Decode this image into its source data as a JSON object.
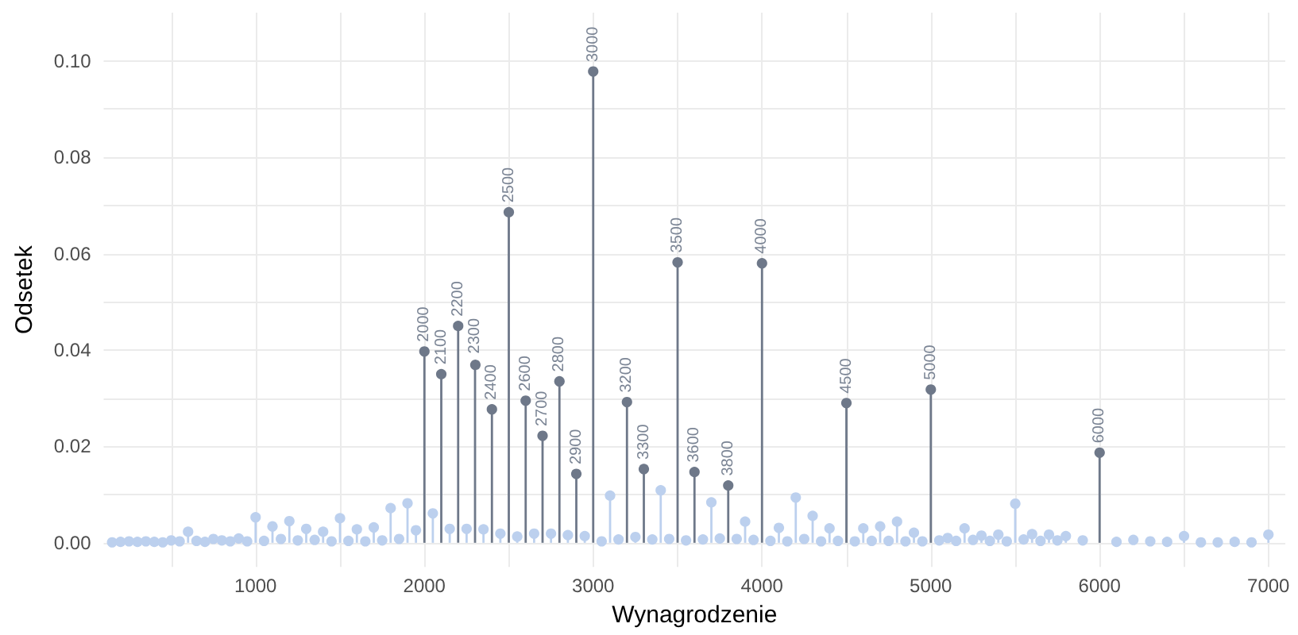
{
  "chart_data": {
    "type": "lollipop",
    "xlabel": "Wynagrodzenie",
    "ylabel": "Odsetek",
    "xlim": [
      100,
      7100
    ],
    "ylim": [
      -0.005,
      0.11
    ],
    "xticks": [
      {
        "value": 500,
        "label": null
      },
      1000,
      {
        "value": 1500,
        "label": null
      },
      2000,
      {
        "value": 2500,
        "label": null
      },
      3000,
      {
        "value": 3500,
        "label": null
      },
      4000,
      {
        "value": 4500,
        "label": null
      },
      5000,
      {
        "value": 5500,
        "label": null
      },
      6000,
      {
        "value": 6500,
        "label": null
      },
      7000
    ],
    "yticks": [
      {
        "value": 0,
        "label": "0.00"
      },
      {
        "value": 0.01,
        "label": null
      },
      {
        "value": 0.02,
        "label": "0.02"
      },
      {
        "value": 0.03,
        "label": null
      },
      {
        "value": 0.04,
        "label": "0.04"
      },
      {
        "value": 0.05,
        "label": null
      },
      {
        "value": 0.06,
        "label": "0.06"
      },
      {
        "value": 0.07,
        "label": null
      },
      {
        "value": 0.08,
        "label": "0.08"
      },
      {
        "value": 0.09,
        "label": null
      },
      {
        "value": 0.1,
        "label": "0.10"
      }
    ],
    "grid": true,
    "marker": "circle",
    "series": [
      {
        "color": "#bcd0ee",
        "x": [
          150,
          200,
          250,
          300,
          350,
          400,
          450,
          500,
          550,
          600,
          650,
          700,
          750,
          800,
          850,
          900,
          950,
          1000,
          1050,
          1100,
          1150,
          1200,
          1250,
          1300,
          1350,
          1400,
          1450,
          1500,
          1550,
          1600,
          1650,
          1700,
          1750,
          1800,
          1850,
          1900,
          1950,
          2050,
          2150,
          2250,
          2350,
          2450,
          2550,
          2650,
          2750,
          2850,
          2950,
          3050,
          3100,
          3150,
          3250,
          3350,
          3400,
          3450,
          3550,
          3650,
          3700,
          3750,
          3850,
          3900,
          3950,
          4050,
          4100,
          4150,
          4200,
          4250,
          4300,
          4350,
          4400,
          4450,
          4550,
          4600,
          4650,
          4700,
          4750,
          4800,
          4850,
          4900,
          4950,
          5050,
          5100,
          5150,
          5200,
          5250,
          5300,
          5350,
          5400,
          5450,
          5500,
          5550,
          5600,
          5650,
          5700,
          5750,
          5800,
          5900,
          6100,
          6200,
          6300,
          6400,
          6500,
          6600,
          6700,
          6800,
          6900,
          7000
        ],
        "values": [
          0.0001,
          0.0002,
          0.0003,
          0.0002,
          0.0003,
          0.0002,
          0.0001,
          0.0005,
          0.0003,
          0.0023,
          0.0004,
          0.0002,
          0.0008,
          0.0005,
          0.0003,
          0.0009,
          0.0003,
          0.0053,
          0.0004,
          0.0034,
          0.0008,
          0.0045,
          0.0005,
          0.0029,
          0.0006,
          0.0023,
          0.0003,
          0.0051,
          0.0004,
          0.0028,
          0.0003,
          0.0032,
          0.0005,
          0.0072,
          0.0008,
          0.0082,
          0.0026,
          0.0061,
          0.0029,
          0.0029,
          0.0028,
          0.0019,
          0.0013,
          0.0019,
          0.0019,
          0.0016,
          0.0014,
          0.0003,
          0.0098,
          0.0007,
          0.0012,
          0.0007,
          0.0109,
          0.0008,
          0.0005,
          0.0007,
          0.0084,
          0.0009,
          0.0008,
          0.0044,
          0.0006,
          0.0004,
          0.0031,
          0.0003,
          0.0094,
          0.0008,
          0.0056,
          0.0003,
          0.003,
          0.0004,
          0.0003,
          0.003,
          0.0004,
          0.0034,
          0.0004,
          0.0044,
          0.0003,
          0.0021,
          0.0003,
          0.0005,
          0.001,
          0.0004,
          0.003,
          0.0006,
          0.0015,
          0.0004,
          0.0017,
          0.0003,
          0.0083,
          0.0007,
          0.0018,
          0.0004,
          0.0017,
          0.0005,
          0.0014,
          0.0005,
          0.0002,
          0.0006,
          0.0003,
          0.0002,
          0.0014,
          0.0001,
          0.0001,
          0.0002,
          0.0001,
          0.0017
        ]
      },
      {
        "color": "#6e7889",
        "x": [
          2000,
          2100,
          2200,
          2300,
          2400,
          2500,
          2600,
          2700,
          2800,
          2900,
          3000,
          3200,
          3300,
          3500,
          3600,
          3800,
          4000,
          4500,
          5000,
          6000
        ],
        "values": [
          0.0397,
          0.035,
          0.045,
          0.0373,
          0.0277,
          0.0686,
          0.0295,
          0.0222,
          0.0335,
          0.0143,
          0.0978,
          0.0292,
          0.0153,
          0.0582,
          0.0147,
          0.0119,
          0.058,
          0.029,
          0.0318,
          0.0187
        ]
      }
    ],
    "annotations": [
      {
        "text": "2000",
        "x": 2000,
        "y": 0.0397
      },
      {
        "text": "2100",
        "x": 2100,
        "y": 0.035
      },
      {
        "text": "2200",
        "x": 2200,
        "y": 0.045
      },
      {
        "text": "2300",
        "x": 2300,
        "y": 0.0373
      },
      {
        "text": "2400",
        "x": 2400,
        "y": 0.0277
      },
      {
        "text": "2500",
        "x": 2500,
        "y": 0.0686
      },
      {
        "text": "2600",
        "x": 2600,
        "y": 0.0295
      },
      {
        "text": "2700",
        "x": 2700,
        "y": 0.0222
      },
      {
        "text": "2800",
        "x": 2800,
        "y": 0.0335
      },
      {
        "text": "2900",
        "x": 2900,
        "y": 0.0143
      },
      {
        "text": "3000",
        "x": 3000,
        "y": 0.0978
      },
      {
        "text": "3200",
        "x": 3200,
        "y": 0.0292
      },
      {
        "text": "3300",
        "x": 3300,
        "y": 0.0153
      },
      {
        "text": "3500",
        "x": 3500,
        "y": 0.0582
      },
      {
        "text": "3600",
        "x": 3600,
        "y": 0.0147
      },
      {
        "text": "3800",
        "x": 3800,
        "y": 0.0119
      },
      {
        "text": "4000",
        "x": 4000,
        "y": 0.058
      },
      {
        "text": "4500",
        "x": 4500,
        "y": 0.029
      },
      {
        "text": "5000",
        "x": 5000,
        "y": 0.0318
      },
      {
        "text": "6000",
        "x": 6000,
        "y": 0.0187
      }
    ]
  }
}
